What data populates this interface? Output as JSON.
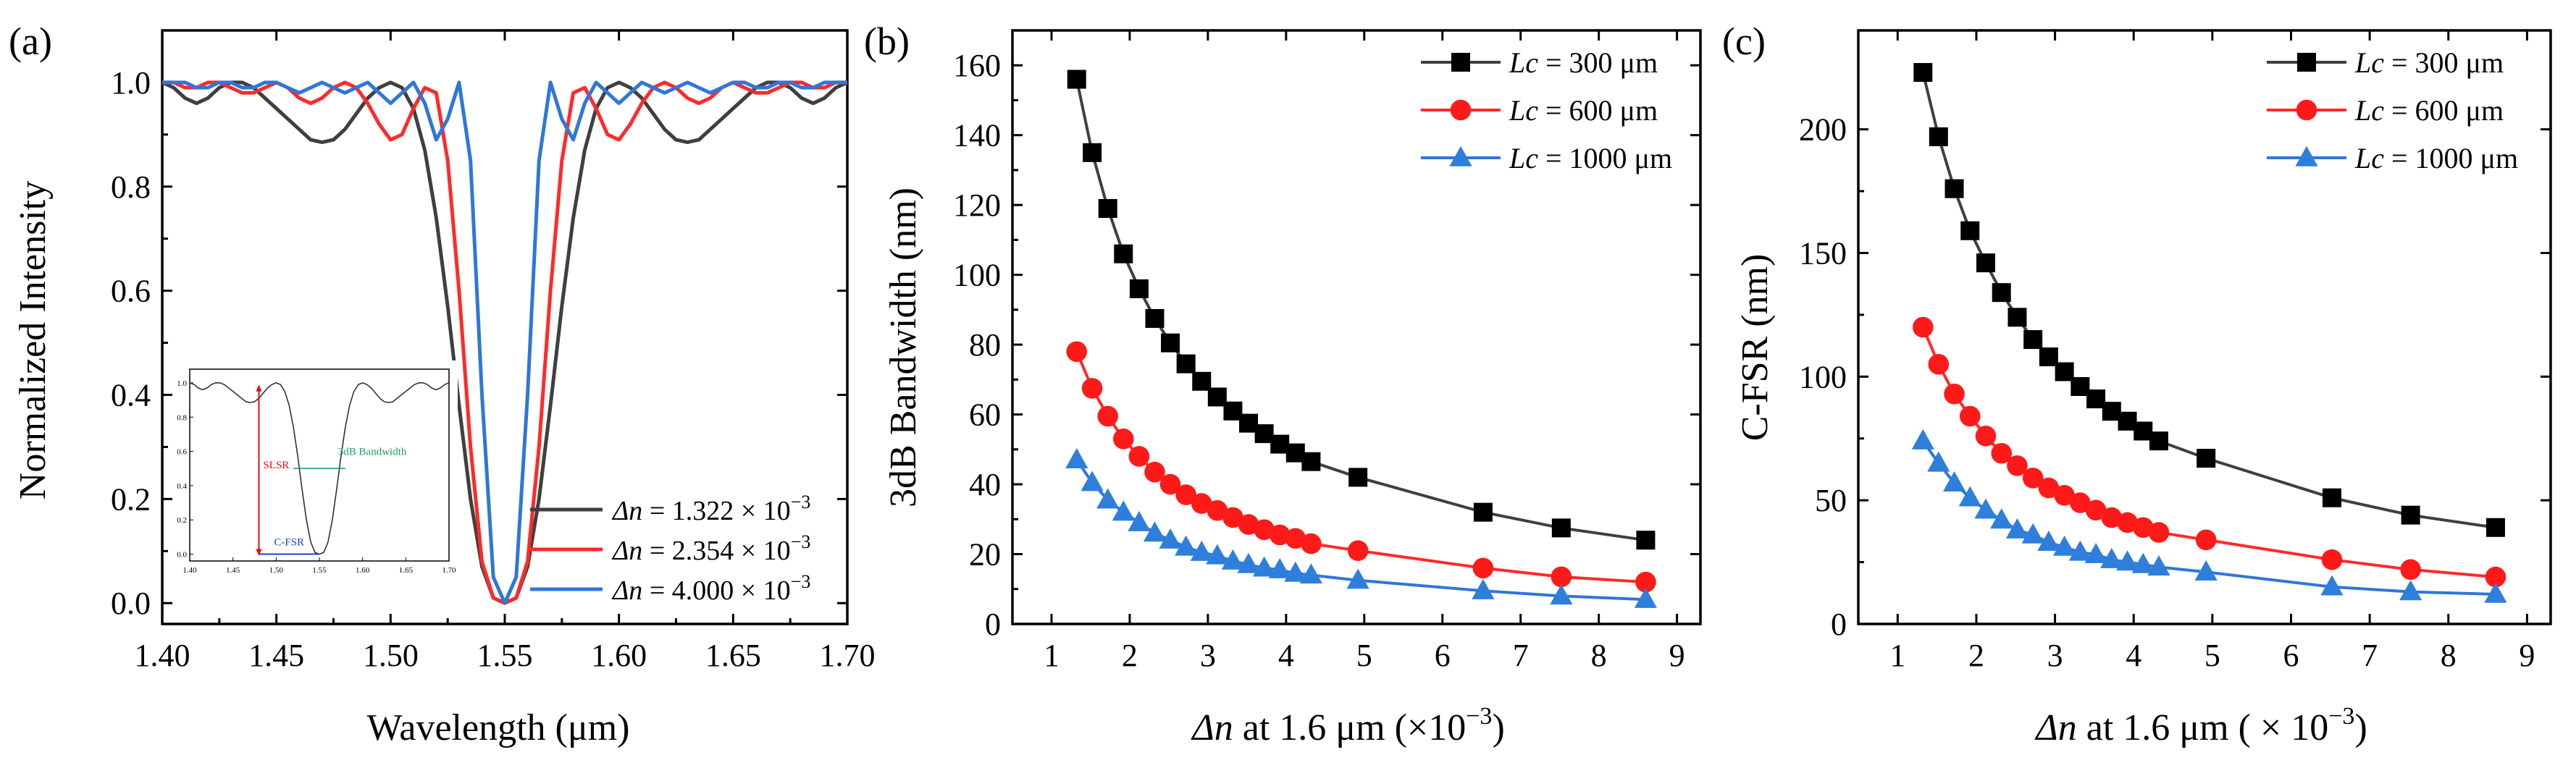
{
  "colors": {
    "black": "#3f3f3f",
    "red": "#ff2a2a",
    "blue": "#2f77d8",
    "marker_black": "#000000",
    "marker_red": "#ff1a1a",
    "marker_blue": "#2e7fdc",
    "inset_red": "#e01010",
    "inset_green": "#1fa05a",
    "inset_blue": "#1f3fd0"
  },
  "chart_data": [
    {
      "panel_label": "(a)",
      "type": "line",
      "xlabel": "Wavelength (μm)",
      "ylabel": "Normalized Intensity",
      "xlim": [
        1.4,
        1.7
      ],
      "ylim": [
        -0.04,
        1.1
      ],
      "xticks": [
        "1.40",
        "1.45",
        "1.50",
        "1.55",
        "1.60",
        "1.65",
        "1.70"
      ],
      "yticks": [
        "0.0",
        "0.2",
        "0.4",
        "0.6",
        "0.8",
        "1.0"
      ],
      "grid": false,
      "legend_position": "bottom-right",
      "series": [
        {
          "name": "Δn = 1.322 × 10⁻³",
          "legend_prefix": "Δn",
          "legend_mid": " = 1.322 × 10",
          "legend_exp": "−3",
          "color": "black",
          "x": [
            1.4,
            1.405,
            1.41,
            1.415,
            1.42,
            1.425,
            1.43,
            1.435,
            1.44,
            1.445,
            1.45,
            1.455,
            1.46,
            1.465,
            1.47,
            1.475,
            1.48,
            1.485,
            1.49,
            1.495,
            1.5,
            1.505,
            1.51,
            1.515,
            1.52,
            1.525,
            1.53,
            1.535,
            1.54,
            1.545,
            1.55,
            1.555,
            1.56,
            1.565,
            1.57,
            1.575,
            1.58,
            1.585,
            1.59,
            1.595,
            1.6,
            1.605,
            1.61,
            1.615,
            1.62,
            1.625,
            1.63,
            1.635,
            1.64,
            1.645,
            1.65,
            1.655,
            1.66,
            1.665,
            1.67,
            1.675,
            1.68,
            1.685,
            1.69,
            1.695,
            1.7
          ],
          "y": [
            1.0,
            0.99,
            0.97,
            0.96,
            0.97,
            0.99,
            1.0,
            1.0,
            0.99,
            0.97,
            0.95,
            0.93,
            0.91,
            0.89,
            0.885,
            0.89,
            0.91,
            0.94,
            0.97,
            0.99,
            1.0,
            0.99,
            0.95,
            0.87,
            0.74,
            0.57,
            0.38,
            0.2,
            0.07,
            0.01,
            0.0,
            0.01,
            0.07,
            0.2,
            0.38,
            0.57,
            0.74,
            0.87,
            0.95,
            0.99,
            1.0,
            0.99,
            0.97,
            0.94,
            0.91,
            0.89,
            0.885,
            0.89,
            0.91,
            0.93,
            0.95,
            0.97,
            0.99,
            1.0,
            1.0,
            0.99,
            0.97,
            0.96,
            0.97,
            0.99,
            1.0
          ]
        },
        {
          "name": "Δn = 2.354 × 10⁻³",
          "legend_prefix": "Δn",
          "legend_mid": " = 2.354 × 10",
          "legend_exp": "−3",
          "color": "red",
          "x": [
            1.4,
            1.405,
            1.41,
            1.415,
            1.42,
            1.425,
            1.43,
            1.435,
            1.44,
            1.445,
            1.45,
            1.455,
            1.46,
            1.465,
            1.47,
            1.475,
            1.48,
            1.485,
            1.49,
            1.495,
            1.5,
            1.505,
            1.51,
            1.515,
            1.52,
            1.525,
            1.53,
            1.535,
            1.54,
            1.545,
            1.55,
            1.555,
            1.56,
            1.565,
            1.57,
            1.575,
            1.58,
            1.585,
            1.59,
            1.595,
            1.6,
            1.605,
            1.61,
            1.615,
            1.62,
            1.625,
            1.63,
            1.635,
            1.64,
            1.645,
            1.65,
            1.655,
            1.66,
            1.665,
            1.67,
            1.675,
            1.68,
            1.685,
            1.69,
            1.695,
            1.7
          ],
          "y": [
            1.0,
            1.0,
            0.99,
            0.99,
            1.0,
            1.0,
            0.99,
            0.98,
            0.98,
            0.99,
            1.0,
            0.99,
            0.97,
            0.96,
            0.97,
            0.99,
            1.0,
            0.99,
            0.96,
            0.92,
            0.89,
            0.9,
            0.95,
            0.99,
            0.98,
            0.85,
            0.6,
            0.3,
            0.08,
            0.01,
            0.0,
            0.01,
            0.08,
            0.3,
            0.6,
            0.85,
            0.98,
            0.99,
            0.95,
            0.9,
            0.89,
            0.92,
            0.96,
            0.99,
            1.0,
            0.99,
            0.97,
            0.96,
            0.97,
            0.99,
            1.0,
            0.99,
            0.98,
            0.98,
            0.99,
            1.0,
            1.0,
            0.99,
            0.99,
            1.0,
            1.0
          ]
        },
        {
          "name": "Δn = 4.000 × 10⁻³",
          "legend_prefix": "Δn",
          "legend_mid": " = 4.000 × 10",
          "legend_exp": "−3",
          "color": "blue",
          "x": [
            1.4,
            1.405,
            1.41,
            1.415,
            1.42,
            1.425,
            1.43,
            1.435,
            1.44,
            1.445,
            1.45,
            1.455,
            1.46,
            1.465,
            1.47,
            1.475,
            1.48,
            1.485,
            1.49,
            1.495,
            1.5,
            1.505,
            1.51,
            1.515,
            1.52,
            1.525,
            1.53,
            1.535,
            1.54,
            1.545,
            1.55,
            1.555,
            1.56,
            1.565,
            1.57,
            1.575,
            1.58,
            1.585,
            1.59,
            1.595,
            1.6,
            1.605,
            1.61,
            1.615,
            1.62,
            1.625,
            1.63,
            1.635,
            1.64,
            1.645,
            1.65,
            1.655,
            1.66,
            1.665,
            1.67,
            1.675,
            1.68,
            1.685,
            1.69,
            1.695,
            1.7
          ],
          "y": [
            1.0,
            1.0,
            1.0,
            0.99,
            0.99,
            1.0,
            1.0,
            0.99,
            0.99,
            1.0,
            1.0,
            0.99,
            0.98,
            0.99,
            1.0,
            0.99,
            0.98,
            0.99,
            1.0,
            0.98,
            0.96,
            0.98,
            1.0,
            0.96,
            0.89,
            0.93,
            1.0,
            0.85,
            0.4,
            0.05,
            0.0,
            0.05,
            0.4,
            0.85,
            1.0,
            0.93,
            0.89,
            0.96,
            1.0,
            0.98,
            0.96,
            0.98,
            1.0,
            0.99,
            0.98,
            0.99,
            1.0,
            0.99,
            0.98,
            0.99,
            1.0,
            1.0,
            0.99,
            0.99,
            1.0,
            1.0,
            0.99,
            0.99,
            1.0,
            1.0,
            1.0
          ]
        }
      ],
      "inset": {
        "xticks": [
          "1.40",
          "1.45",
          "1.50",
          "1.55",
          "1.60",
          "1.65",
          "1.70"
        ],
        "yticks": [
          "0.0",
          "0.2",
          "0.4",
          "0.6",
          "0.8",
          "1.0"
        ],
        "labels": {
          "slsr": "SLSR",
          "bandwidth": "3dB Bandwidth",
          "cfsr": "C-FSR"
        }
      }
    },
    {
      "panel_label": "(b)",
      "type": "line",
      "xlabel_prefix": "Δn",
      "xlabel_rest": " at 1.6 μm (×10",
      "xlabel_exp": "−3",
      "xlabel_close": ")",
      "ylabel": "3dB Bandwidth (nm)",
      "xlim": [
        0.5,
        9.3
      ],
      "ylim": [
        0,
        170
      ],
      "xticks": [
        "1",
        "2",
        "3",
        "4",
        "5",
        "6",
        "7",
        "8",
        "9"
      ],
      "yticks": [
        "0",
        "20",
        "40",
        "60",
        "80",
        "100",
        "120",
        "140",
        "160"
      ],
      "grid": false,
      "legend_position": "top-right",
      "series": [
        {
          "name": "Lc = 300 μm",
          "legend_prefix": "Lc",
          "legend_rest": " = 300 μm",
          "color": "black",
          "marker": "square",
          "x": [
            1.322,
            1.52,
            1.72,
            1.92,
            2.12,
            2.32,
            2.52,
            2.72,
            2.92,
            3.12,
            3.32,
            3.52,
            3.72,
            3.92,
            4.12,
            4.32,
            4.92,
            6.52,
            7.52,
            8.6
          ],
          "y": [
            156,
            135,
            119,
            106,
            96,
            87.5,
            80.5,
            74.5,
            69.5,
            65,
            61,
            57.5,
            54.5,
            51.5,
            49,
            46.5,
            42,
            32,
            27.5,
            24
          ]
        },
        {
          "name": "Lc = 600 μm",
          "legend_prefix": "Lc",
          "legend_rest": " = 600 μm",
          "color": "red",
          "marker": "circle",
          "x": [
            1.322,
            1.52,
            1.72,
            1.92,
            2.12,
            2.32,
            2.52,
            2.72,
            2.92,
            3.12,
            3.32,
            3.52,
            3.72,
            3.92,
            4.12,
            4.32,
            4.92,
            6.52,
            7.52,
            8.6
          ],
          "y": [
            78,
            67.5,
            59.5,
            53,
            48,
            43.5,
            40,
            37,
            34.5,
            32.5,
            30.5,
            28.5,
            27,
            25.5,
            24.5,
            23,
            21,
            16,
            13.5,
            12
          ]
        },
        {
          "name": "Lc = 1000 μm",
          "legend_prefix": "Lc",
          "legend_rest": " = 1000 μm",
          "color": "blue",
          "marker": "triangle",
          "x": [
            1.322,
            1.52,
            1.72,
            1.92,
            2.12,
            2.32,
            2.52,
            2.72,
            2.92,
            3.12,
            3.32,
            3.52,
            3.72,
            3.92,
            4.12,
            4.32,
            4.92,
            6.52,
            7.52,
            8.6
          ],
          "y": [
            47,
            40.5,
            35.5,
            32,
            29,
            26,
            24,
            22,
            20.5,
            19.5,
            18,
            17,
            16,
            15.5,
            14.5,
            14,
            12.5,
            9.5,
            8,
            7
          ]
        }
      ]
    },
    {
      "panel_label": "(c)",
      "type": "line",
      "xlabel_prefix": "Δn",
      "xlabel_rest": " at 1.6 μm ( × 10",
      "xlabel_exp": "−3",
      "xlabel_close": ")",
      "ylabel": "C-FSR (nm)",
      "xlim": [
        0.5,
        9.3
      ],
      "ylim": [
        0,
        240
      ],
      "xticks": [
        "1",
        "2",
        "3",
        "4",
        "5",
        "6",
        "7",
        "8",
        "9"
      ],
      "yticks": [
        "0",
        "50",
        "100",
        "150",
        "200"
      ],
      "grid": false,
      "legend_position": "top-right",
      "series": [
        {
          "name": "Lc = 300 μm",
          "legend_prefix": "Lc",
          "legend_rest": " = 300 μm",
          "color": "black",
          "marker": "square",
          "x": [
            1.322,
            1.52,
            1.72,
            1.92,
            2.12,
            2.32,
            2.52,
            2.72,
            2.92,
            3.12,
            3.32,
            3.52,
            3.72,
            3.92,
            4.12,
            4.32,
            4.92,
            6.52,
            7.52,
            8.6
          ],
          "y": [
            223,
            197,
            176,
            159,
            146,
            134,
            124,
            115,
            108,
            102,
            96,
            91,
            86,
            82,
            78,
            74,
            67,
            51,
            44,
            39
          ]
        },
        {
          "name": "Lc = 600 μm",
          "legend_prefix": "Lc",
          "legend_rest": " = 600 μm",
          "color": "red",
          "marker": "circle",
          "x": [
            1.322,
            1.52,
            1.72,
            1.92,
            2.12,
            2.32,
            2.52,
            2.72,
            2.92,
            3.12,
            3.32,
            3.52,
            3.72,
            3.92,
            4.12,
            4.32,
            4.92,
            6.52,
            7.52,
            8.6
          ],
          "y": [
            120,
            105,
            93,
            84,
            76,
            69,
            64,
            59,
            55,
            52,
            49,
            46,
            43,
            41,
            39,
            37,
            34,
            26,
            22,
            19
          ]
        },
        {
          "name": "Lc = 1000 μm",
          "legend_prefix": "Lc",
          "legend_rest": " = 1000 μm",
          "color": "blue",
          "marker": "triangle",
          "x": [
            1.322,
            1.52,
            1.72,
            1.92,
            2.12,
            2.32,
            2.52,
            2.72,
            2.92,
            3.12,
            3.32,
            3.52,
            3.72,
            3.92,
            4.12,
            4.32,
            4.92,
            6.52,
            7.52,
            8.6
          ],
          "y": [
            74,
            65,
            57,
            51,
            46,
            42,
            38,
            36,
            33,
            31,
            29,
            28,
            26,
            25,
            24,
            23,
            21,
            15,
            13,
            12
          ]
        }
      ]
    }
  ]
}
